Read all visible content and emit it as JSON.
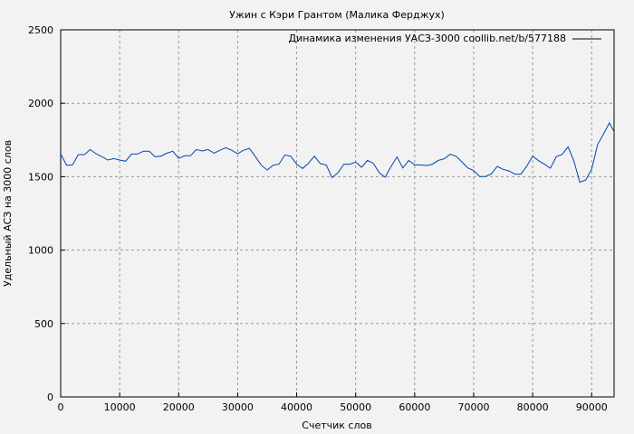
{
  "chart_data": {
    "type": "line",
    "title": "Ужин с Кэри Грантом (Малика Ферджух)",
    "xlabel": "Счетчик слов",
    "ylabel": "Удельный АСЗ на 3000 слов",
    "xlim": [
      0,
      93800
    ],
    "ylim": [
      0,
      2500
    ],
    "xticks": [
      0,
      10000,
      20000,
      30000,
      40000,
      50000,
      60000,
      70000,
      80000,
      90000
    ],
    "yticks": [
      0,
      500,
      1000,
      1500,
      2000,
      2500
    ],
    "grid": true,
    "legend_position": "top-right",
    "line_color": "#0047ab",
    "series": [
      {
        "name": "Динамика изменения УАСЗ-3000 coollib.net/b/577188",
        "x": [
          0,
          1000,
          2000,
          3000,
          4000,
          5000,
          6000,
          7000,
          8000,
          9000,
          10000,
          11000,
          12000,
          13000,
          14000,
          15000,
          16000,
          17000,
          18000,
          19000,
          20000,
          21000,
          22000,
          23000,
          24000,
          25000,
          26000,
          27000,
          28000,
          29000,
          30000,
          31000,
          32000,
          33000,
          34000,
          35000,
          36000,
          37000,
          38000,
          39000,
          40000,
          41000,
          42000,
          43000,
          44000,
          45000,
          46000,
          47000,
          48000,
          49000,
          50000,
          51000,
          52000,
          53000,
          54000,
          55000,
          56000,
          57000,
          58000,
          59000,
          60000,
          61000,
          62000,
          63000,
          64000,
          65000,
          66000,
          67000,
          68000,
          69000,
          70000,
          71000,
          72000,
          73000,
          74000,
          75000,
          76000,
          77000,
          78000,
          79000,
          80000,
          81000,
          82000,
          83000,
          84000,
          85000,
          86000,
          87000,
          88000,
          89000,
          90000,
          91000,
          92000,
          93000,
          93800
        ],
        "y": [
          1656,
          1578,
          1580,
          1650,
          1650,
          1685,
          1656,
          1636,
          1613,
          1623,
          1613,
          1605,
          1654,
          1654,
          1673,
          1673,
          1636,
          1640,
          1660,
          1673,
          1625,
          1642,
          1642,
          1685,
          1675,
          1685,
          1660,
          1680,
          1697,
          1680,
          1656,
          1680,
          1693,
          1636,
          1578,
          1545,
          1578,
          1585,
          1648,
          1640,
          1585,
          1556,
          1591,
          1640,
          1589,
          1580,
          1493,
          1527,
          1585,
          1585,
          1599,
          1564,
          1611,
          1591,
          1527,
          1497,
          1570,
          1634,
          1560,
          1611,
          1580,
          1580,
          1576,
          1585,
          1611,
          1621,
          1652,
          1640,
          1601,
          1560,
          1541,
          1501,
          1501,
          1519,
          1570,
          1550,
          1539,
          1517,
          1517,
          1572,
          1640,
          1609,
          1585,
          1558,
          1636,
          1652,
          1703,
          1605,
          1462,
          1478,
          1550,
          1718,
          1790,
          1866,
          1806
        ]
      }
    ]
  }
}
